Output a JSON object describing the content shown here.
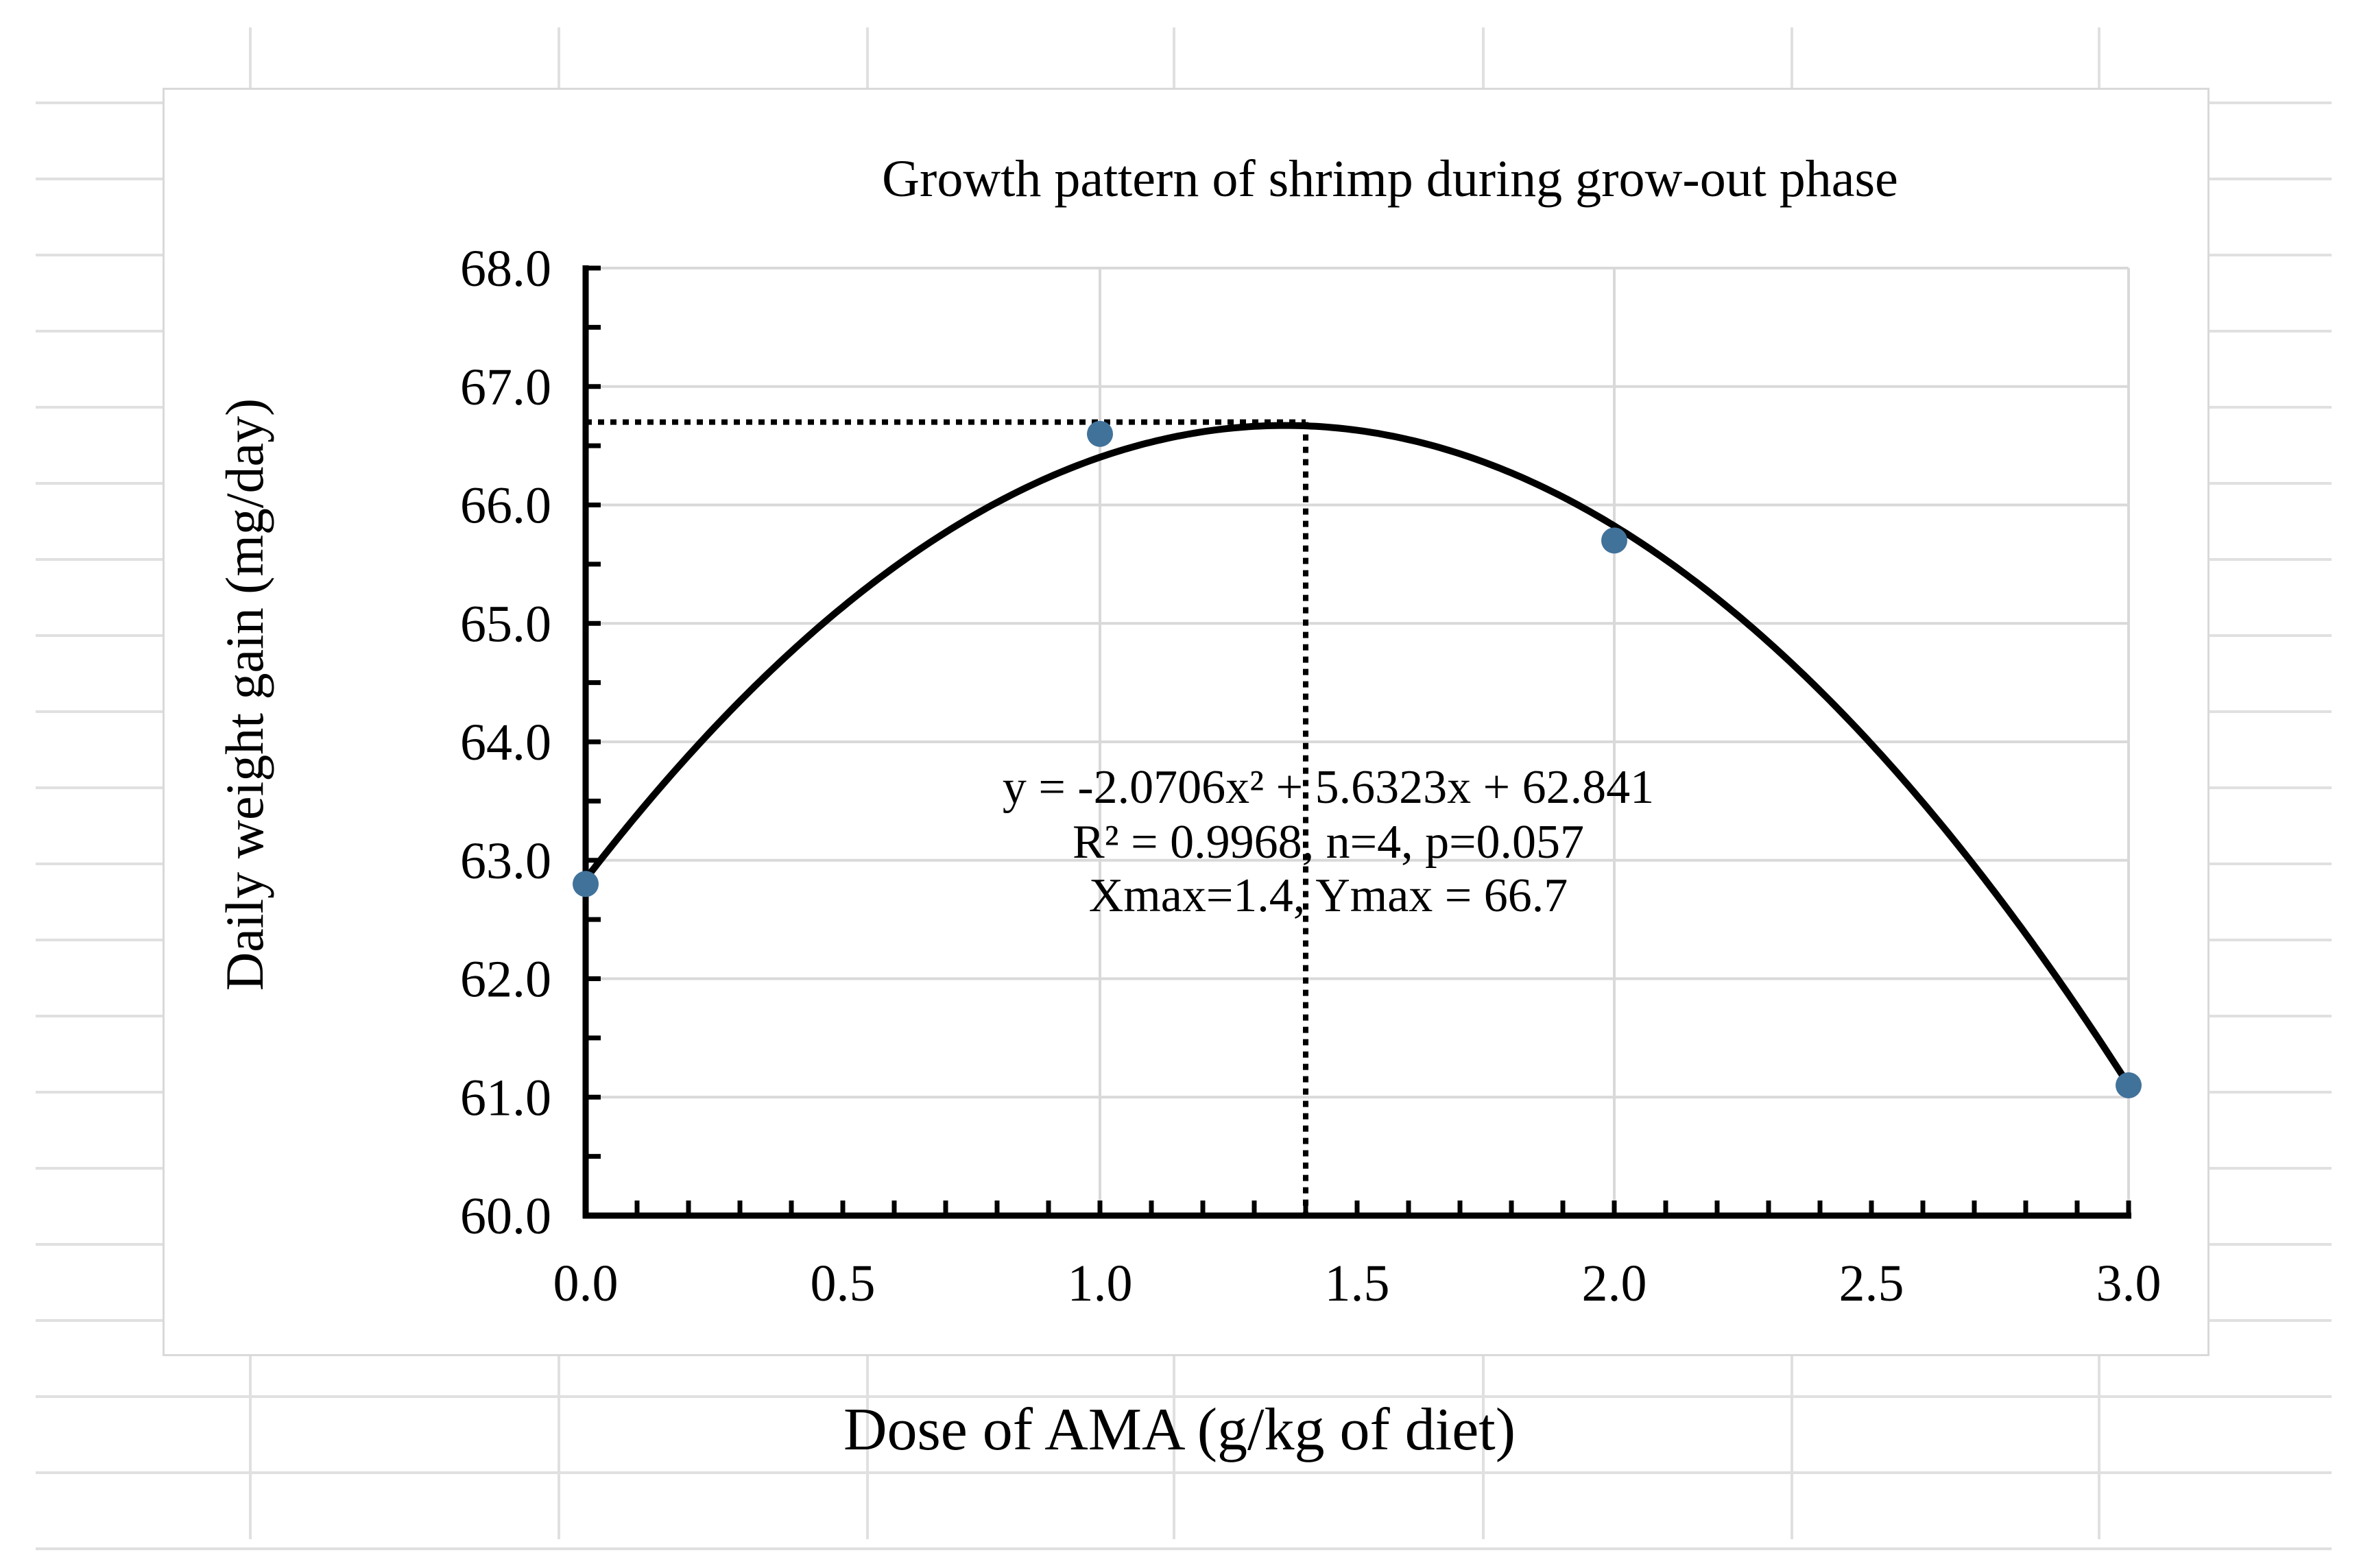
{
  "chart_data": {
    "type": "scatter",
    "title": "Growth pattern of shrimp during grow-out phase",
    "xlabel": "Dose of AMA (g/kg of diet)",
    "ylabel": "Daily weight gain (mg/day)",
    "xlim": [
      0,
      3
    ],
    "ylim": [
      60,
      68
    ],
    "x_ticks": [
      "0.0",
      "0.5",
      "1.0",
      "1.5",
      "2.0",
      "2.5",
      "3.0"
    ],
    "y_ticks": [
      "60.0",
      "61.0",
      "62.0",
      "63.0",
      "64.0",
      "65.0",
      "66.0",
      "67.0",
      "68.0"
    ],
    "x_tick_values": [
      0,
      0.5,
      1.0,
      1.5,
      2.0,
      2.5,
      3.0
    ],
    "y_tick_values": [
      60,
      61,
      62,
      63,
      64,
      65,
      66,
      67,
      68
    ],
    "points": [
      {
        "x": 0.0,
        "y": 62.8
      },
      {
        "x": 1.0,
        "y": 66.6
      },
      {
        "x": 2.0,
        "y": 65.7
      },
      {
        "x": 3.0,
        "y": 61.1
      }
    ],
    "trendline": {
      "type": "polynomial",
      "a": -2.0706,
      "b": 5.6323,
      "c": 62.841
    },
    "peak": {
      "x": 1.4,
      "y": 66.7
    },
    "annotation_lines": [
      "y = -2.0706x² + 5.6323x + 62.841",
      "R² = 0.9968, n=4, p=0.057",
      "Xmax=1.4, Ymax = 66.7"
    ],
    "grid": true,
    "colors": {
      "point": "#41729a",
      "line": "#000000",
      "grid": "#d9d9d9",
      "sheet_grid": "#e0e0e0"
    }
  }
}
